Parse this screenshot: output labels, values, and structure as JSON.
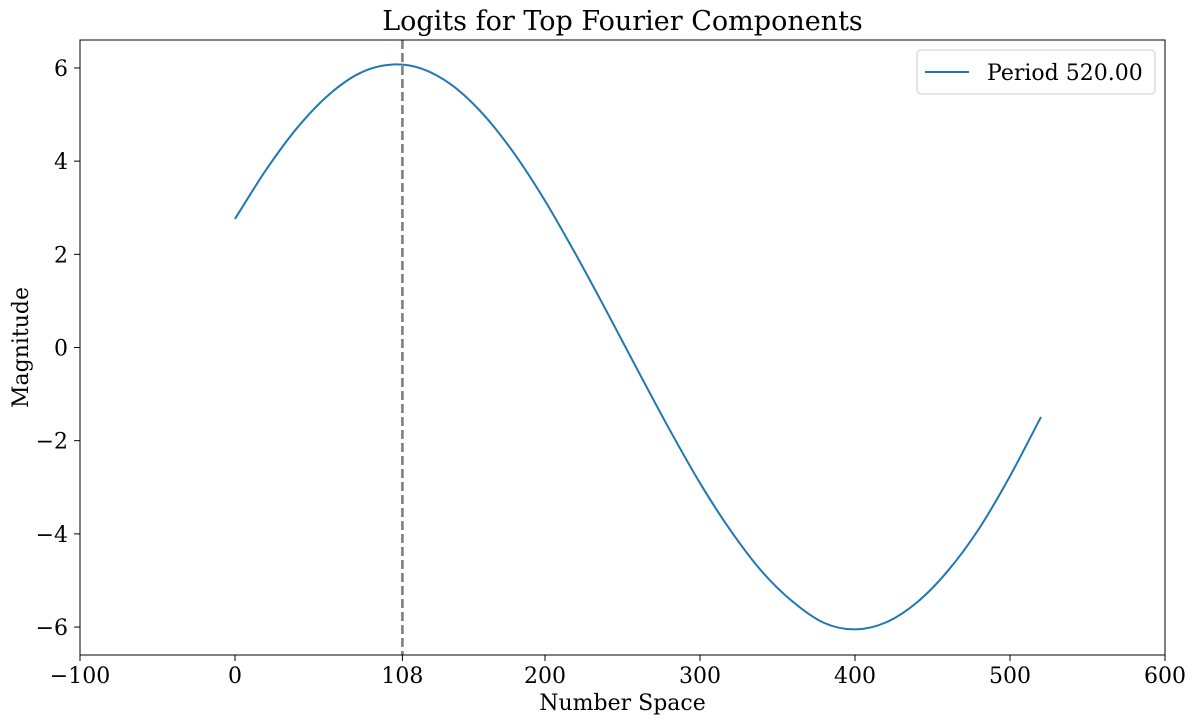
{
  "chart_data": {
    "type": "line",
    "title": "Logits for Top Fourier Components",
    "xlabel": "Number Space",
    "ylabel": "Magnitude",
    "xlim": [
      -100,
      600
    ],
    "ylim": [
      -6.6,
      6.6
    ],
    "x_ticks": [
      -100,
      0,
      108,
      200,
      300,
      400,
      500,
      600
    ],
    "x_tick_labels": [
      "−100",
      "0",
      "108",
      "200",
      "300",
      "400",
      "500",
      "600"
    ],
    "y_ticks": [
      -6,
      -4,
      -2,
      0,
      2,
      4,
      6
    ],
    "y_tick_labels": [
      "−6",
      "−4",
      "−2",
      "0",
      "2",
      "4",
      "6"
    ],
    "grid": false,
    "legend_position": "top-right",
    "vertical_line": {
      "x": 108,
      "style": "dashed",
      "color": "#7f7f7f"
    },
    "series": [
      {
        "name": "Period 520.00",
        "color": "#1f77b4",
        "x": [
          0,
          20,
          40,
          60,
          80,
          100,
          120,
          140,
          160,
          180,
          200,
          220,
          240,
          260,
          280,
          300,
          320,
          340,
          360,
          380,
          400,
          420,
          440,
          460,
          480,
          500,
          520
        ],
        "y": [
          2.76,
          3.81,
          4.71,
          5.41,
          5.88,
          6.07,
          5.99,
          5.63,
          5.01,
          4.17,
          3.15,
          1.99,
          0.76,
          -0.5,
          -1.74,
          -2.91,
          -3.94,
          -4.81,
          -5.46,
          -5.91,
          -6.05,
          -5.9,
          -5.47,
          -4.79,
          -3.89,
          -2.76,
          -1.49
        ]
      }
    ]
  }
}
